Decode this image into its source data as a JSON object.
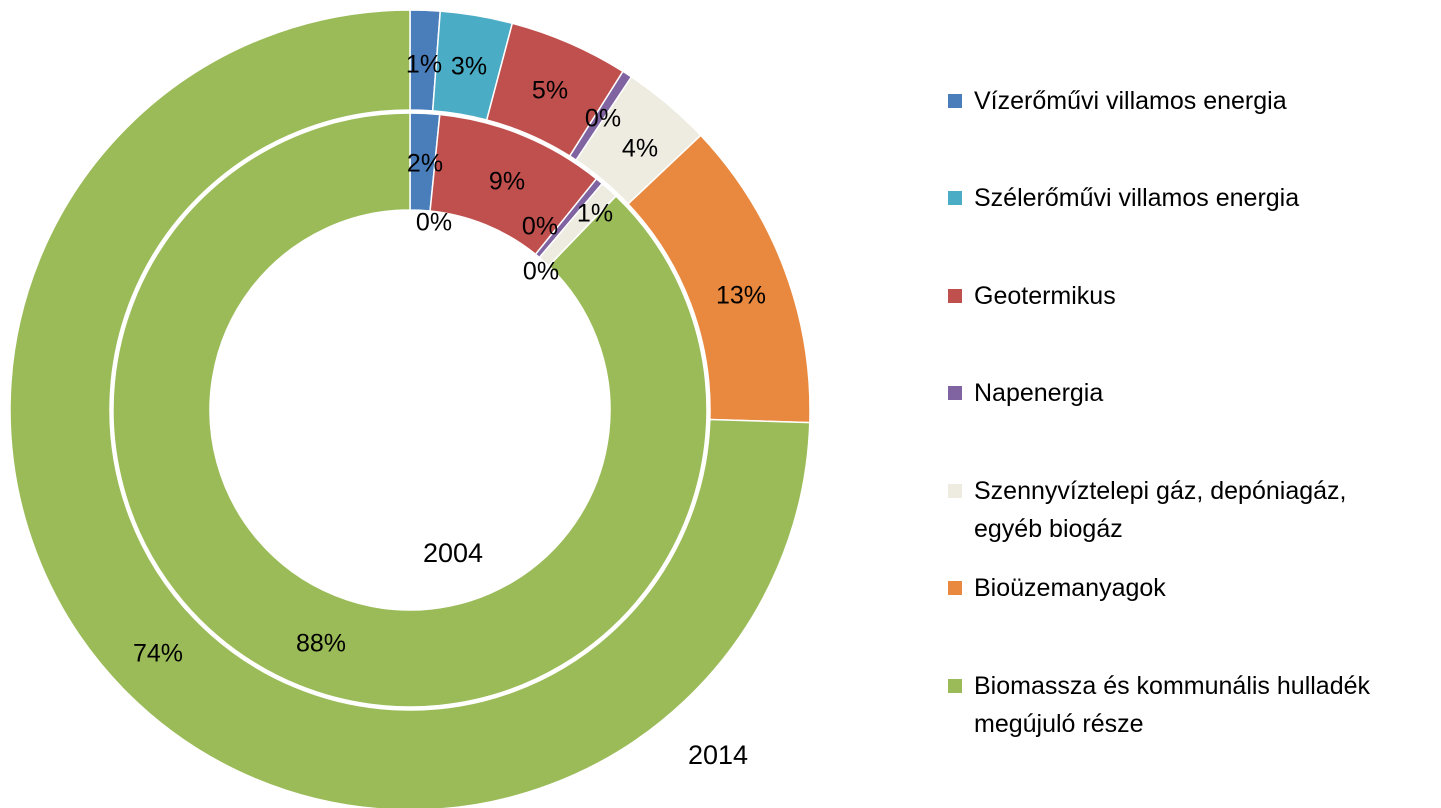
{
  "chart_data": {
    "type": "donut",
    "categories": [
      "Vízerőművi villamos energia",
      "Szélerőművi villamos energia",
      "Geotermikus",
      "Napenergia",
      "Szennyvíztelepi gáz, depóniagáz, egyéb biogáz",
      "Bioüzemanyagok",
      "Biomassza és kommunális hulladék megújuló része"
    ],
    "colors": [
      "#4a7ebb",
      "#4bacc6",
      "#c0504d",
      "#8064a2",
      "#eeece1",
      "#e8893f",
      "#9bbb59"
    ],
    "series": [
      {
        "name": "2004",
        "values": [
          1.6,
          0,
          9.2,
          0.4,
          1.0,
          0,
          87.8
        ],
        "value_labels": [
          "2%",
          "0%",
          "9%",
          "0%",
          "1%",
          "0%",
          "88%"
        ]
      },
      {
        "name": "2014",
        "values": [
          1.2,
          2.9,
          4.8,
          0.4,
          3.6,
          12.5,
          74.2
        ],
        "value_labels": [
          "1%",
          "3%",
          "5%",
          "0%",
          "4%",
          "13%",
          "74%"
        ]
      }
    ],
    "legend": "right"
  }
}
